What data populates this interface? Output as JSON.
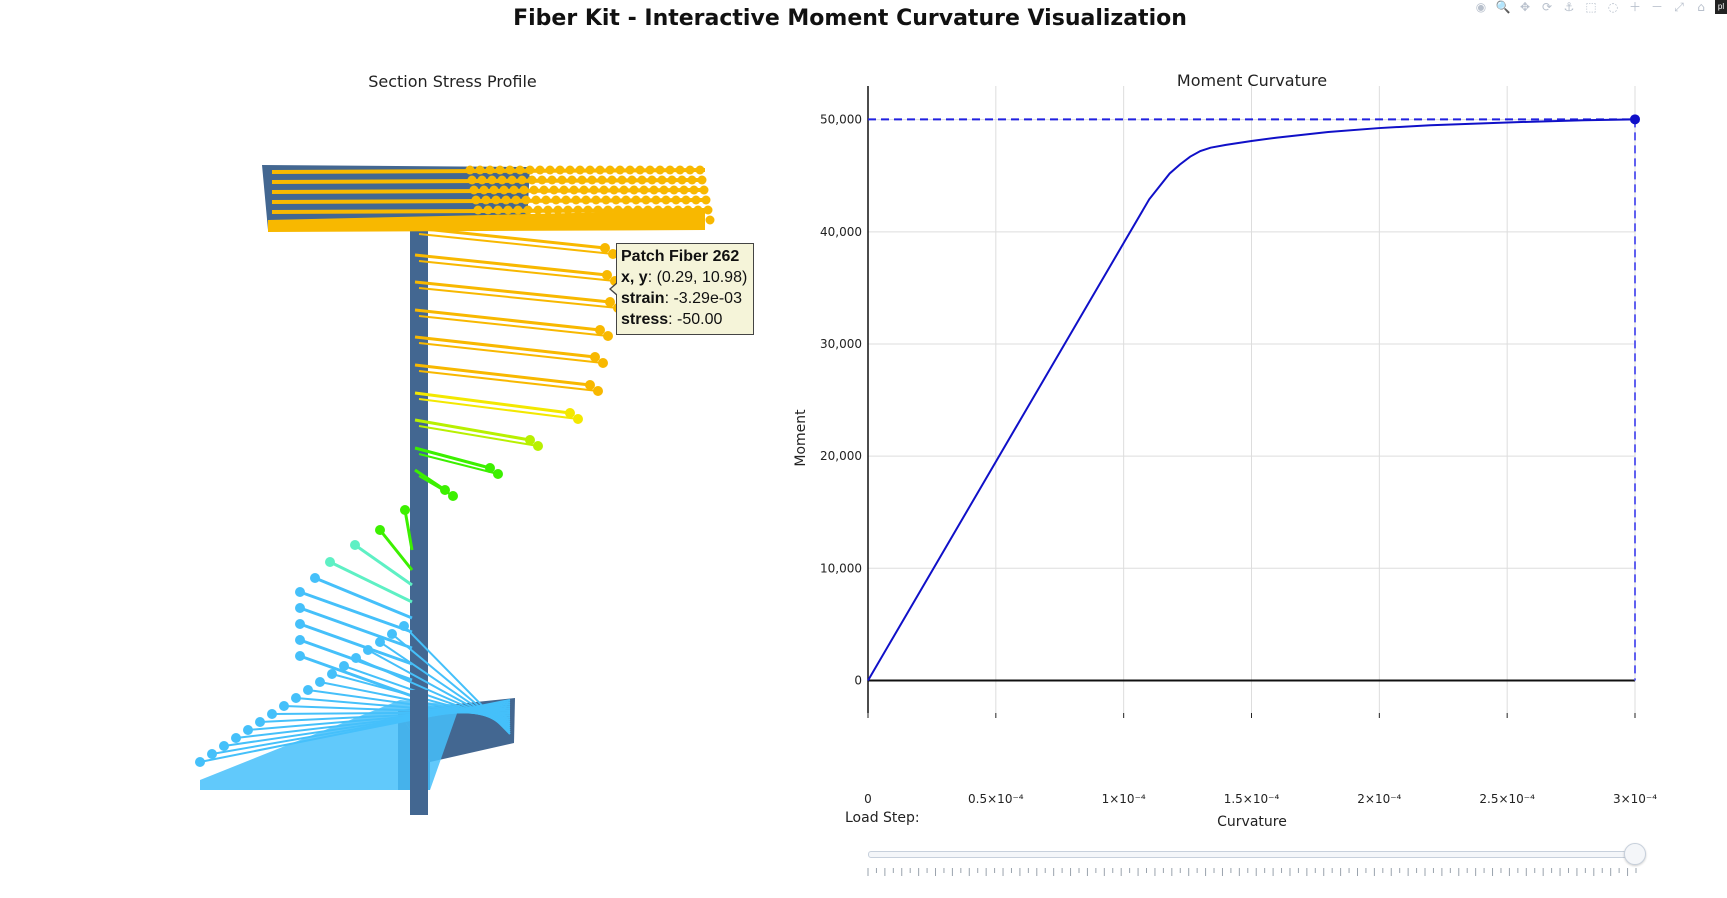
{
  "title": "Fiber Kit - Interactive Moment Curvature Visualization",
  "modebar": {
    "buttons": [
      "camera-icon",
      "zoom-icon",
      "pan-icon",
      "orbit-icon",
      "turntable-icon",
      "box-select-icon",
      "lasso-icon",
      "zoom-in-icon",
      "zoom-out-icon",
      "autoscale-icon",
      "reset-icon"
    ],
    "glyphs": [
      "◉",
      "🔍",
      "✥",
      "⟳",
      "⚓",
      "⬚",
      "◌",
      "＋",
      "－",
      "⤢",
      "⌂"
    ],
    "logo": "pl"
  },
  "left_panel": {
    "title": "Section Stress Profile",
    "colors": {
      "section": "#436791",
      "compression": "#f8b800",
      "yellow": "#f3e800",
      "lime": "#b8f000",
      "green": "#3cf000",
      "aqua": "#5ef0c4",
      "blue": "#45c0fa"
    }
  },
  "tooltip": {
    "name": "Patch Fiber 262",
    "xy_label": "x, y",
    "xy_value": ": (0.29, 10.98)",
    "strain_label": "strain",
    "strain_value": ": -3.29e-03",
    "stress_label": "stress",
    "stress_value": ": -50.00"
  },
  "slider": {
    "label": "Load Step:",
    "value_fraction": 1.0,
    "tick_count": 92
  },
  "chart_data": {
    "type": "line",
    "title": "Moment Curvature",
    "xlabel": "Curvature",
    "ylabel": "Moment",
    "xlim": [
      0,
      0.0003
    ],
    "ylim": [
      -2900,
      53000
    ],
    "x_ticks": [
      0,
      5e-05,
      0.0001,
      0.00015,
      0.0002,
      0.00025,
      0.0003
    ],
    "x_tick_labels": [
      "0",
      "0.5×10⁻⁴",
      "1×10⁻⁴",
      "1.5×10⁻⁴",
      "2×10⁻⁴",
      "2.5×10⁻⁴",
      "3×10⁻⁴"
    ],
    "y_ticks": [
      0,
      10000,
      20000,
      30000,
      40000,
      50000
    ],
    "y_tick_labels": [
      "0",
      "10,000",
      "20,000",
      "30,000",
      "40,000",
      "50,000"
    ],
    "grid": true,
    "series": [
      {
        "name": "Moment Curvature",
        "color": "#1010c8",
        "x": [
          0,
          1e-05,
          2e-05,
          3e-05,
          4e-05,
          5e-05,
          6e-05,
          7e-05,
          8e-05,
          9e-05,
          0.0001,
          0.00011,
          0.000118,
          0.000122,
          0.000126,
          0.00013,
          0.000134,
          0.00014,
          0.00015,
          0.00016,
          0.00018,
          0.0002,
          0.00022,
          0.00025,
          0.00028,
          0.0003
        ],
        "y": [
          0,
          3900,
          7800,
          11700,
          15600,
          19500,
          23400,
          27300,
          31200,
          35100,
          39000,
          42900,
          45200,
          46000,
          46700,
          47200,
          47500,
          47750,
          48100,
          48400,
          48900,
          49250,
          49500,
          49750,
          49950,
          50030
        ]
      }
    ],
    "current_point": {
      "x": 0.0003,
      "y": 50030
    }
  }
}
